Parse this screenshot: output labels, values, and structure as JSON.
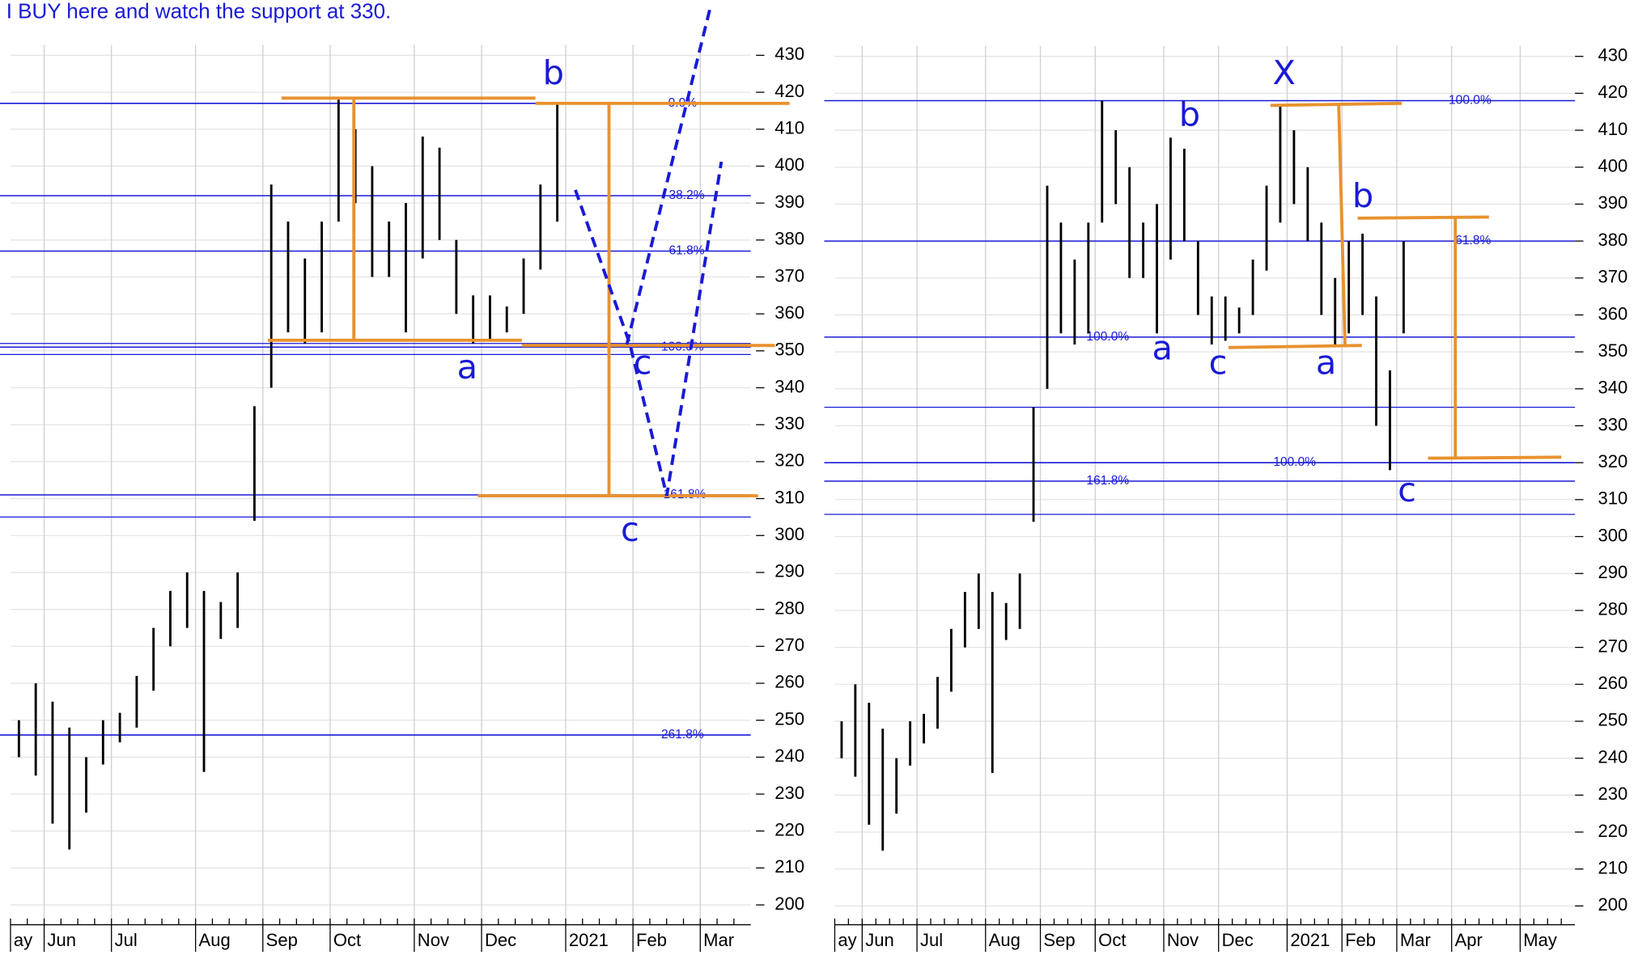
{
  "title": "I BUY here and watch the support at 330.",
  "chart_data": [
    {
      "type": "ohlc",
      "color": "#000000",
      "categories": [
        "ay",
        null,
        "Jun",
        null,
        null,
        null,
        "Jul",
        null,
        null,
        null,
        null,
        "Aug",
        null,
        null,
        null,
        "Sep",
        null,
        null,
        null,
        "Oct",
        null,
        null,
        null,
        null,
        "Nov",
        null,
        null,
        null,
        "Dec",
        null,
        null,
        null,
        null,
        "2021",
        null,
        null,
        null,
        "Feb",
        null,
        null,
        null,
        "Mar",
        null,
        null
      ],
      "high": [
        250,
        260,
        255,
        248,
        240,
        250,
        252,
        262,
        275,
        285,
        290,
        285,
        282,
        290,
        335,
        395,
        385,
        375,
        385,
        418,
        410,
        400,
        385,
        390,
        408,
        405,
        380,
        365,
        365,
        362,
        375,
        395,
        417,
        null,
        null,
        null,
        null,
        null,
        null,
        null,
        null,
        null,
        null,
        null
      ],
      "low": [
        240,
        235,
        222,
        215,
        225,
        238,
        244,
        248,
        258,
        270,
        275,
        236,
        272,
        275,
        304,
        340,
        355,
        352,
        355,
        385,
        390,
        370,
        370,
        355,
        375,
        380,
        360,
        352,
        353,
        355,
        360,
        372,
        385,
        null,
        null,
        null,
        null,
        null,
        null,
        null,
        null,
        null,
        null,
        null
      ],
      "ylim": [
        200,
        430
      ],
      "yticks": [
        200,
        210,
        220,
        230,
        240,
        250,
        260,
        270,
        280,
        290,
        300,
        310,
        320,
        330,
        340,
        350,
        360,
        370,
        380,
        390,
        400,
        410,
        420,
        430
      ],
      "grid": true,
      "levels": [
        {
          "value": 417,
          "label": "0.0%"
        },
        {
          "value": 392,
          "label": "38.2%"
        },
        {
          "value": 377,
          "label": "61.8%"
        },
        {
          "value": 351,
          "label": "100.0%"
        },
        {
          "value": 311,
          "label": "161.8%"
        },
        {
          "value": 246,
          "label": "261.8%"
        }
      ],
      "lines": [
        352,
        349,
        305
      ],
      "annotations": [
        "b",
        "a",
        "c",
        "c"
      ]
    },
    {
      "type": "ohlc",
      "color": "#000000",
      "categories": [
        "ay",
        null,
        "Jun",
        null,
        null,
        null,
        "Jul",
        null,
        null,
        null,
        null,
        "Aug",
        null,
        null,
        null,
        "Sep",
        null,
        null,
        null,
        "Oct",
        null,
        null,
        null,
        null,
        "Nov",
        null,
        null,
        null,
        "Dec",
        null,
        null,
        null,
        null,
        "2021",
        null,
        null,
        null,
        "Feb",
        null,
        null,
        null,
        "Mar",
        null,
        null,
        null,
        "Apr",
        null,
        null,
        null,
        null,
        "May",
        null,
        null,
        null
      ],
      "high": [
        250,
        260,
        255,
        248,
        240,
        250,
        252,
        262,
        275,
        285,
        290,
        285,
        282,
        290,
        335,
        395,
        385,
        375,
        385,
        418,
        410,
        400,
        385,
        390,
        408,
        405,
        380,
        365,
        365,
        362,
        375,
        395,
        417,
        410,
        400,
        385,
        370,
        380,
        382,
        365,
        345,
        380,
        null,
        null,
        null,
        null,
        null,
        null,
        null,
        null,
        null,
        null,
        null,
        null
      ],
      "low": [
        240,
        235,
        222,
        215,
        225,
        238,
        244,
        248,
        258,
        270,
        275,
        236,
        272,
        275,
        304,
        340,
        355,
        352,
        355,
        385,
        390,
        370,
        370,
        355,
        375,
        380,
        360,
        352,
        353,
        355,
        360,
        372,
        385,
        390,
        380,
        360,
        352,
        355,
        360,
        330,
        318,
        355,
        null,
        null,
        null,
        null,
        null,
        null,
        null,
        null,
        null,
        null,
        null,
        null
      ],
      "ylim": [
        200,
        430
      ],
      "yticks": [
        200,
        210,
        220,
        230,
        240,
        250,
        260,
        270,
        280,
        290,
        300,
        310,
        320,
        330,
        340,
        350,
        360,
        370,
        380,
        390,
        400,
        410,
        420,
        430
      ],
      "grid": true,
      "levels": [
        {
          "value": 418,
          "label": "100.0%"
        },
        {
          "value": 380,
          "label": "61.8%"
        },
        {
          "value": 354,
          "label": "100.0%"
        },
        {
          "value": 320,
          "label": "100.0%"
        },
        {
          "value": 315,
          "label": "161.8%"
        }
      ],
      "lines": [
        335,
        306
      ],
      "annotations": [
        "X",
        "b",
        "a",
        "c",
        "a",
        "b",
        "c"
      ]
    }
  ]
}
